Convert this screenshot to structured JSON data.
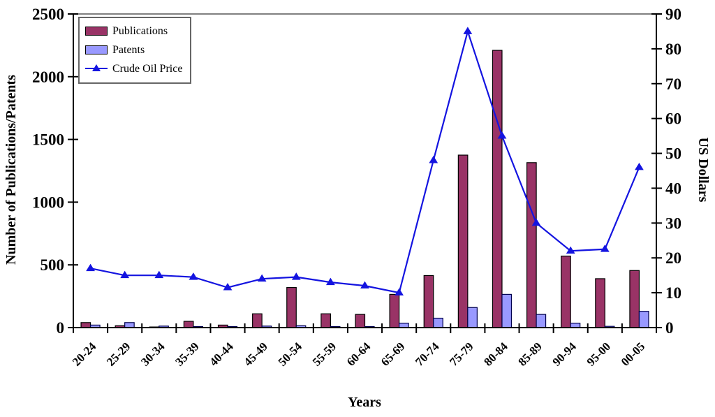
{
  "chart_data": {
    "type": "bar",
    "subtype": "bar+line combo, dual axis",
    "title": "",
    "categories": [
      "20-24",
      "25-29",
      "30-34",
      "35-39",
      "40-44",
      "45-49",
      "50-54",
      "55-59",
      "60-64",
      "65-69",
      "70-74",
      "75-79",
      "80-84",
      "85-89",
      "90-94",
      "95-00",
      "00-05"
    ],
    "series": [
      {
        "name": "Publications",
        "type": "bar",
        "axis": "left",
        "color": "#993366",
        "border_color": "#000000",
        "values": [
          40,
          15,
          5,
          50,
          20,
          110,
          320,
          110,
          105,
          265,
          415,
          1375,
          2210,
          1315,
          570,
          390,
          455
        ]
      },
      {
        "name": "Patents",
        "type": "bar",
        "axis": "left",
        "color": "#9999FF",
        "border_color": "#00004d",
        "values": [
          20,
          40,
          12,
          8,
          8,
          12,
          15,
          8,
          8,
          35,
          75,
          160,
          265,
          105,
          35,
          10,
          130
        ]
      },
      {
        "name": "Crude Oil Price",
        "type": "line",
        "axis": "right",
        "color": "#1414e0",
        "marker": "triangle",
        "marker_color": "#1414e0",
        "values": [
          17,
          15,
          15,
          14.5,
          11.5,
          14,
          14.5,
          13,
          12,
          10,
          48,
          85,
          55,
          30,
          22,
          22.5,
          46
        ]
      }
    ],
    "x_axis": {
      "title": "Years",
      "tick_label_rotation": -45
    },
    "left_axis": {
      "title": "Number of Publications/Patents",
      "min": 0,
      "max": 2500,
      "ticks": [
        0,
        500,
        1000,
        1500,
        2000,
        2500
      ]
    },
    "right_axis": {
      "title": "US Dollars",
      "min": 0,
      "max": 90,
      "ticks": [
        0,
        10,
        20,
        30,
        40,
        50,
        60,
        70,
        80,
        90
      ]
    },
    "legend": {
      "position": "top-left",
      "entries": [
        "Publications",
        "Patents",
        "Crude Oil Price"
      ]
    },
    "grid": false,
    "background": "#ffffff",
    "frame_color": "#808080",
    "axis_color": "#000000"
  }
}
